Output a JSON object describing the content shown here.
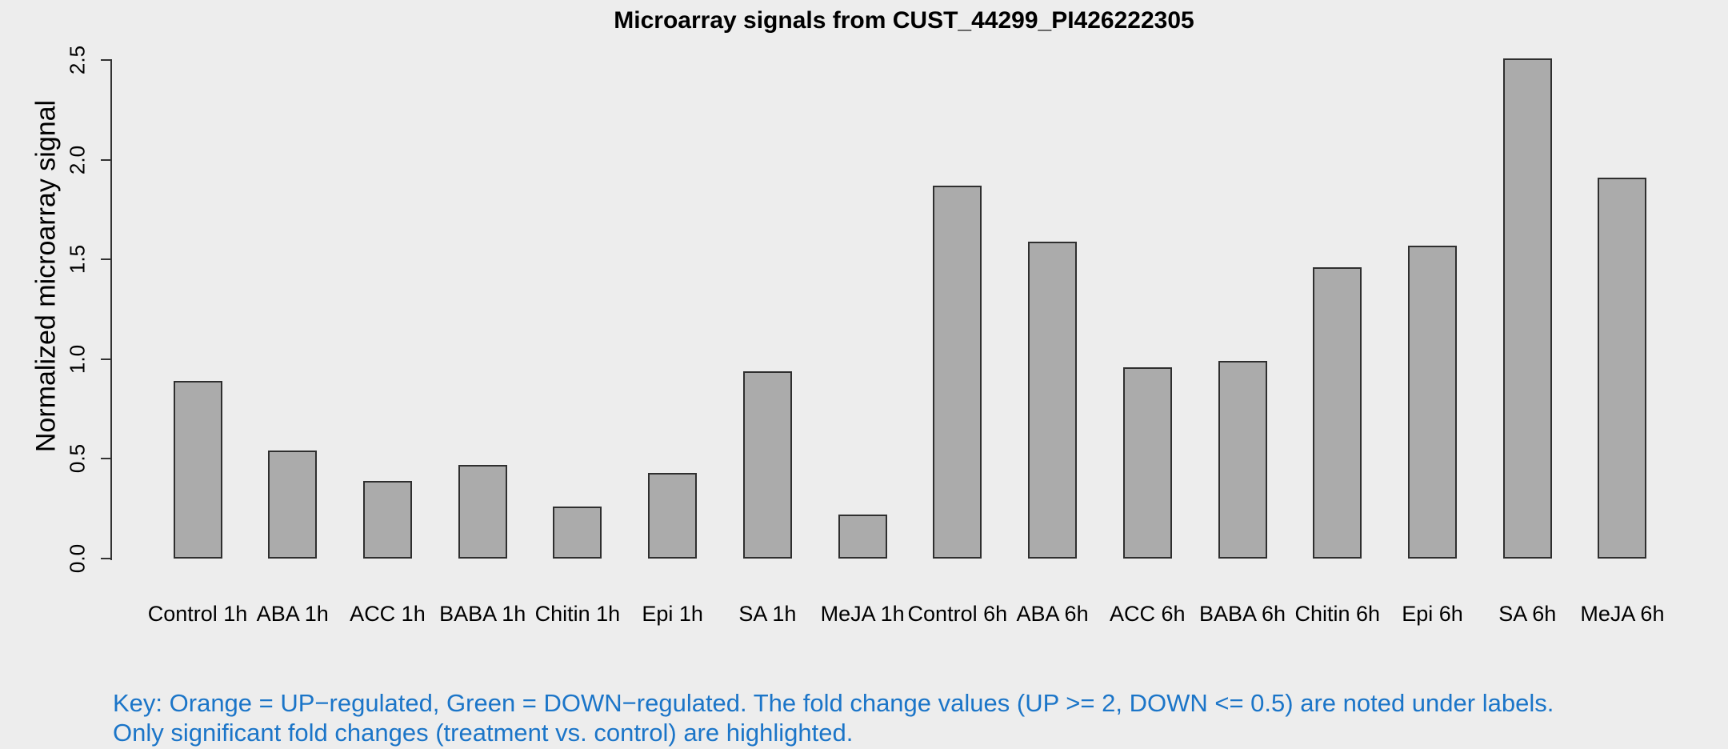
{
  "page": {
    "background": "#EDEDED"
  },
  "chart_data": {
    "type": "bar",
    "title": "Microarray signals from CUST_44299_PI426222305",
    "ylabel": "Normalized microarray signal",
    "xlabel": "",
    "ylim": [
      0,
      2.5
    ],
    "ytick_labels": [
      "0.0",
      "0.5",
      "1.0",
      "1.5",
      "2.0",
      "2.5"
    ],
    "categories": [
      "Control 1h",
      "ABA 1h",
      "ACC 1h",
      "BABA 1h",
      "Chitin 1h",
      "Epi 1h",
      "SA 1h",
      "MeJA 1h",
      "Control 6h",
      "ABA 6h",
      "ACC 6h",
      "BABA 6h",
      "Chitin 6h",
      "Epi 6h",
      "SA 6h",
      "MeJA 6h"
    ],
    "values": [
      0.89,
      0.54,
      0.39,
      0.47,
      0.26,
      0.43,
      0.94,
      0.22,
      1.87,
      1.59,
      0.96,
      0.99,
      1.46,
      1.57,
      2.51,
      1.91
    ],
    "grid": false,
    "legend": "none",
    "bar_fill": "#ABABAB",
    "bar_border": "#2F2F2F",
    "axis_color": "#333333",
    "title_color": "#000000",
    "text_color": "#000000"
  },
  "footnote": {
    "line1": "Key: Orange = UP−regulated, Green = DOWN−regulated. The fold change values (UP >= 2, DOWN <= 0.5) are noted under labels.",
    "line2": "Only significant fold changes (treatment vs. control) are highlighted.",
    "color": "#1B75C8"
  }
}
